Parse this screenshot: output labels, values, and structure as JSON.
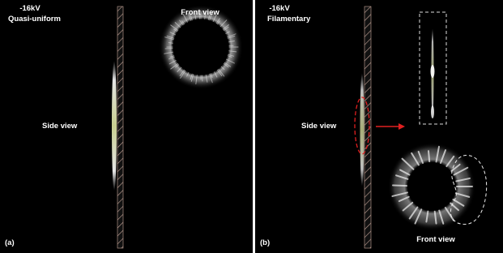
{
  "panels": [
    {
      "voltage": "-16kV",
      "mode": "Quasi-uniform",
      "front_label": "Front view",
      "side_label": "Side view",
      "tag": "(a)"
    },
    {
      "voltage": "-16kV",
      "mode": "Filamentary",
      "side_label": "Side view",
      "front_label": "Front view",
      "tag": "(b)"
    }
  ]
}
